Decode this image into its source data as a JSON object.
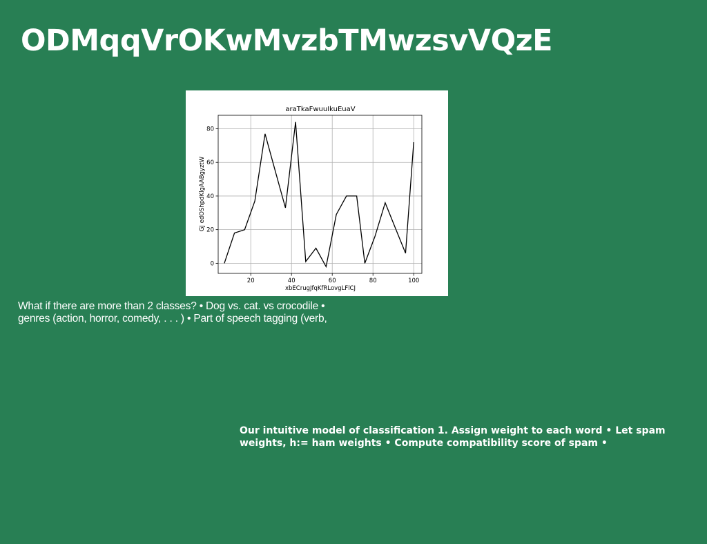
{
  "slide": {
    "title": "ODMqqVrOKwMvzbTMwzsvVQzE",
    "body_text": "What if there are more than 2 classes? • Dog vs. cat. vs crocodile • genres (action, horror, comedy, . . . ) • Part of speech tagging (verb,",
    "note_text": "Our intuitive model of classification 1. Assign weight to each word • Let spam weights, h:= ham weights • Compute compatibility score of spam •"
  },
  "colors": {
    "background": "#287F54",
    "text": "#ffffff",
    "line": "#000000",
    "grid": "#b0b0b0"
  },
  "chart_data": {
    "type": "line",
    "title": "araTkaFwuuIkuEuaV",
    "xlabel": "xbECrugJfqKfRLovgLFlCJ",
    "ylabel": "GJ edOShpdKlgAABgyztW",
    "xlim": [
      4,
      104
    ],
    "ylim": [
      -6,
      88
    ],
    "xticks": [
      20,
      40,
      60,
      80,
      100
    ],
    "yticks": [
      0,
      20,
      40,
      60,
      80
    ],
    "grid": true,
    "series": [
      {
        "x": [
          7,
          12,
          17,
          22,
          27,
          32,
          37,
          42,
          47,
          52,
          57,
          62,
          67,
          72,
          76,
          81,
          86,
          91,
          96,
          100
        ],
        "y": [
          0,
          18,
          20,
          37,
          77,
          55,
          33,
          84,
          1,
          9,
          -2,
          29,
          40,
          40,
          0,
          16,
          36,
          21,
          6,
          72
        ]
      }
    ]
  }
}
